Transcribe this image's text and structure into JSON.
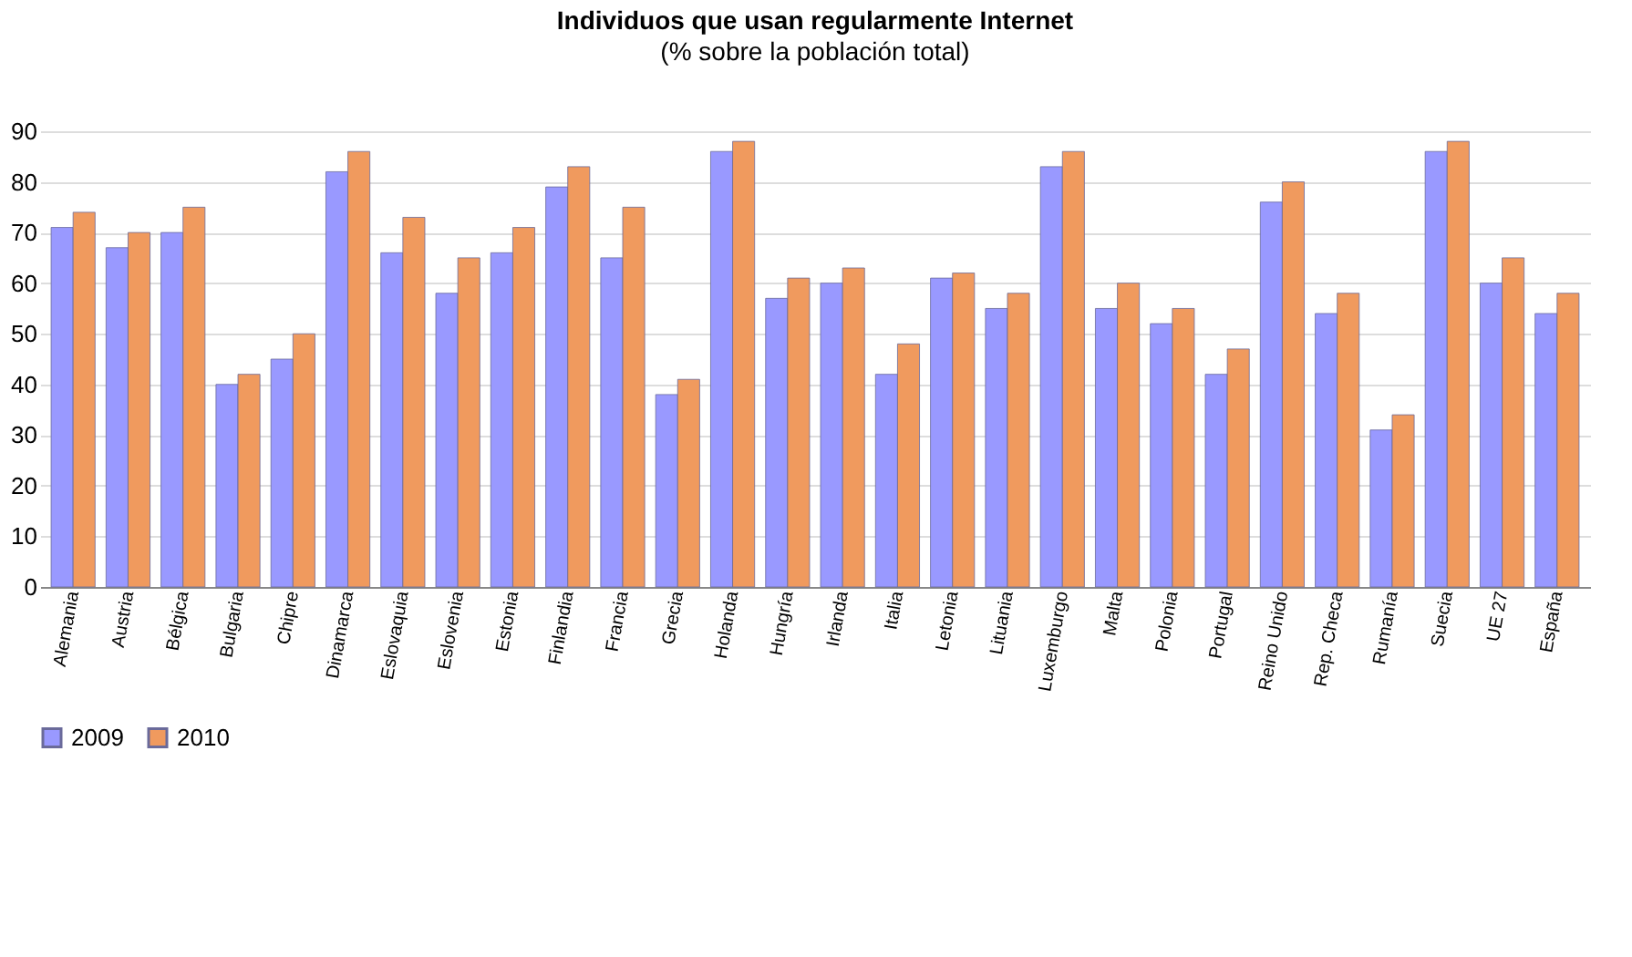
{
  "chart_data": {
    "type": "bar",
    "title": "Individuos que usan regularmente Internet",
    "subtitle": "(% sobre la población total)",
    "categories": [
      "Alemania",
      "Austria",
      "Bélgica",
      "Bulgaria",
      "Chipre",
      "Dinamarca",
      "Eslovaquia",
      "Eslovenia",
      "Estonia",
      "Finlandia",
      "Francia",
      "Grecia",
      "Holanda",
      "Hungría",
      "Irlanda",
      "Italia",
      "Letonia",
      "Lituania",
      "Luxemburgo",
      "Malta",
      "Polonia",
      "Portugal",
      "Reino Unido",
      "Rep. Checa",
      "Rumanía",
      "Suecia",
      "UE 27",
      "España"
    ],
    "series": [
      {
        "name": "2009",
        "color": "#9999ff",
        "values": [
          71,
          67,
          70,
          40,
          45,
          82,
          66,
          58,
          66,
          79,
          65,
          38,
          86,
          57,
          60,
          42,
          61,
          55,
          83,
          55,
          52,
          42,
          76,
          54,
          31,
          86,
          60,
          54
        ]
      },
      {
        "name": "2010",
        "color": "#f09a5e",
        "values": [
          74,
          70,
          75,
          42,
          50,
          86,
          73,
          65,
          71,
          83,
          75,
          41,
          88,
          61,
          63,
          48,
          62,
          58,
          86,
          60,
          55,
          47,
          80,
          58,
          34,
          88,
          65,
          58
        ]
      }
    ],
    "ylim": [
      0,
      90
    ],
    "yticks": [
      0,
      10,
      20,
      30,
      40,
      50,
      60,
      70,
      80,
      90
    ],
    "grid": "y",
    "legend": "bottom"
  }
}
